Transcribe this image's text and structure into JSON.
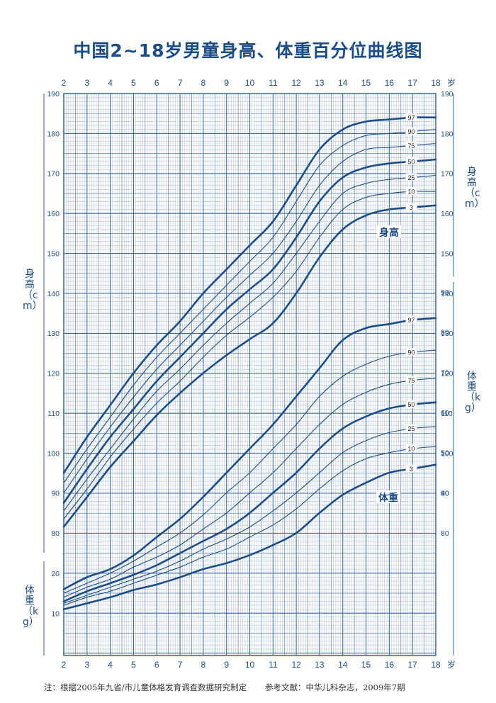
{
  "title": "中国2~18岁男童身高、体重百分位曲线图",
  "footnote": "注：根据2005年九省/市儿童体格发育调查数据研究制定",
  "reference": "参考文献：中华儿科杂志，2009年7期",
  "left_height_label": "身高（cm）",
  "right_height_label": "身高（cm）",
  "left_weight_label": "体重（kg）",
  "right_weight_label": "体重（kg）",
  "colors": {
    "grid": "#2c5b9c",
    "curve": "#1d4d86",
    "text": "#1d4d86"
  },
  "chart_data": {
    "type": "line",
    "title": "中国2~18岁男童身高、体重百分位曲线图",
    "x": {
      "ticks": [
        2,
        3,
        4,
        5,
        6,
        7,
        8,
        9,
        10,
        11,
        12,
        13,
        14,
        15,
        16,
        17,
        18
      ],
      "unit": "岁",
      "range": [
        2,
        18
      ]
    },
    "height_axis": {
      "ticks": [
        80,
        90,
        100,
        110,
        120,
        130,
        140,
        150,
        160,
        170,
        180,
        190
      ],
      "range": [
        77,
        190
      ]
    },
    "weight_axis_left": {
      "ticks": [
        10,
        20
      ],
      "range": [
        3,
        25
      ]
    },
    "weight_axis_right": {
      "ticks": [
        40,
        50,
        60,
        70,
        80,
        90
      ],
      "range": [
        33,
        92
      ]
    },
    "height_label": "身高",
    "weight_label": "体重",
    "height_series": [
      {
        "name": "97",
        "x": [
          2,
          3,
          4,
          5,
          6,
          7,
          8,
          9,
          10,
          11,
          12,
          13,
          14,
          15,
          16,
          17,
          18
        ],
        "values": [
          95,
          104,
          112,
          120,
          127,
          133,
          140,
          146,
          152,
          158,
          167,
          176,
          181,
          183,
          183.5,
          184,
          184
        ]
      },
      {
        "name": "90",
        "x": [
          2,
          3,
          4,
          5,
          6,
          7,
          8,
          9,
          10,
          11,
          12,
          13,
          14,
          15,
          16,
          17,
          18
        ],
        "values": [
          92.5,
          101,
          109,
          117,
          124,
          130,
          136,
          142,
          148,
          154,
          163,
          172,
          177,
          179.5,
          180,
          180.5,
          181
        ]
      },
      {
        "name": "75",
        "x": [
          2,
          3,
          4,
          5,
          6,
          7,
          8,
          9,
          10,
          11,
          12,
          13,
          14,
          15,
          16,
          17,
          18
        ],
        "values": [
          90,
          98.5,
          106.5,
          114,
          121,
          127,
          133,
          139,
          144.5,
          150,
          158,
          167,
          173,
          176,
          176.5,
          177,
          177.5
        ]
      },
      {
        "name": "50",
        "x": [
          2,
          3,
          4,
          5,
          6,
          7,
          8,
          9,
          10,
          11,
          12,
          13,
          14,
          15,
          16,
          17,
          18
        ],
        "values": [
          87.5,
          96,
          104,
          111,
          118,
          124,
          130,
          136,
          141,
          146,
          154,
          163,
          169,
          171.5,
          172.5,
          173,
          173.5
        ]
      },
      {
        "name": "25",
        "x": [
          2,
          3,
          4,
          5,
          6,
          7,
          8,
          9,
          10,
          11,
          12,
          13,
          14,
          15,
          16,
          17,
          18
        ],
        "values": [
          85.5,
          93.5,
          101,
          108.5,
          115.5,
          121,
          127,
          132.5,
          137.5,
          142.5,
          150,
          158,
          165,
          167.5,
          168.5,
          169,
          169.5
        ]
      },
      {
        "name": "10",
        "x": [
          2,
          3,
          4,
          5,
          6,
          7,
          8,
          9,
          10,
          11,
          12,
          13,
          14,
          15,
          16,
          17,
          18
        ],
        "values": [
          83.5,
          91,
          99,
          106,
          112.5,
          118,
          124,
          129.5,
          134,
          139,
          145.5,
          154,
          161,
          164,
          165,
          165.5,
          165.5
        ]
      },
      {
        "name": "3",
        "x": [
          2,
          3,
          4,
          5,
          6,
          7,
          8,
          9,
          10,
          11,
          12,
          13,
          14,
          15,
          16,
          17,
          18
        ],
        "values": [
          81.5,
          89,
          96.5,
          103,
          109.5,
          115,
          120,
          124.5,
          128.5,
          132.5,
          140,
          149,
          156,
          159.5,
          161,
          161.5,
          162
        ]
      }
    ],
    "weight_series": [
      {
        "name": "97",
        "x": [
          2,
          3,
          4,
          5,
          6,
          7,
          8,
          9,
          10,
          11,
          12,
          13,
          14,
          15,
          16,
          17,
          18
        ],
        "values": [
          16,
          19,
          21,
          24.4,
          29,
          33.5,
          39,
          45,
          51,
          57,
          64,
          71,
          78,
          81,
          82,
          83,
          83.5
        ]
      },
      {
        "name": "90",
        "x": [
          2,
          3,
          4,
          5,
          6,
          7,
          8,
          9,
          10,
          11,
          12,
          13,
          14,
          15,
          16,
          17,
          18
        ],
        "values": [
          15,
          17.5,
          20,
          23,
          26.5,
          30,
          34.5,
          40,
          45,
          51,
          57,
          64,
          69,
          72,
          74,
          75,
          75.5
        ]
      },
      {
        "name": "75",
        "x": [
          2,
          3,
          4,
          5,
          6,
          7,
          8,
          9,
          10,
          11,
          12,
          13,
          14,
          15,
          16,
          17,
          18
        ],
        "values": [
          14,
          16.5,
          18.5,
          21.5,
          24,
          27,
          31,
          35,
          40,
          45,
          51,
          57,
          62,
          65,
          67,
          68,
          68.5
        ]
      },
      {
        "name": "50",
        "x": [
          2,
          3,
          4,
          5,
          6,
          7,
          8,
          9,
          10,
          11,
          12,
          13,
          14,
          15,
          16,
          17,
          18
        ],
        "values": [
          13,
          15.5,
          17.5,
          19.6,
          22,
          25,
          28,
          31,
          35,
          40,
          45,
          51,
          56,
          59,
          61,
          62,
          62.5
        ]
      },
      {
        "name": "25",
        "x": [
          2,
          3,
          4,
          5,
          6,
          7,
          8,
          9,
          10,
          11,
          12,
          13,
          14,
          15,
          16,
          17,
          18
        ],
        "values": [
          12.5,
          14.5,
          16.5,
          18.5,
          20.5,
          23,
          26,
          28.5,
          31.5,
          35.5,
          40,
          45,
          50,
          53,
          55,
          56,
          56.5
        ]
      },
      {
        "name": "10",
        "x": [
          2,
          3,
          4,
          5,
          6,
          7,
          8,
          9,
          10,
          11,
          12,
          13,
          14,
          15,
          16,
          17,
          18
        ],
        "values": [
          12,
          14,
          15.5,
          17.5,
          19.5,
          21.5,
          24,
          26,
          29,
          32,
          36,
          41,
          45.5,
          48.5,
          50,
          51,
          51.5
        ]
      },
      {
        "name": "3",
        "x": [
          2,
          3,
          4,
          5,
          6,
          7,
          8,
          9,
          10,
          11,
          12,
          13,
          14,
          15,
          16,
          17,
          18
        ],
        "values": [
          11,
          12.5,
          14,
          15.8,
          17.2,
          19,
          21,
          22.5,
          24.5,
          27,
          30,
          35,
          39.5,
          42.5,
          45,
          46,
          47
        ]
      }
    ]
  }
}
